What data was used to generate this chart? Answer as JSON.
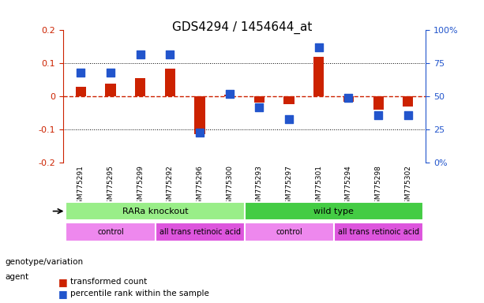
{
  "title": "GDS4294 / 1454644_at",
  "samples": [
    "GSM775291",
    "GSM775295",
    "GSM775299",
    "GSM775292",
    "GSM775296",
    "GSM775300",
    "GSM775293",
    "GSM775297",
    "GSM775301",
    "GSM775294",
    "GSM775298",
    "GSM775302"
  ],
  "transformed_count": [
    0.03,
    0.04,
    0.055,
    0.085,
    -0.113,
    0.005,
    -0.018,
    -0.022,
    0.12,
    -0.015,
    -0.04,
    -0.03
  ],
  "percentile_rank": [
    68,
    68,
    82,
    82,
    23,
    52,
    42,
    33,
    87,
    49,
    36,
    36
  ],
  "ylim_left": [
    -0.2,
    0.2
  ],
  "ylim_right": [
    0,
    100
  ],
  "yticks_left": [
    -0.2,
    -0.1,
    0,
    0.1,
    0.2
  ],
  "yticks_right": [
    0,
    25,
    50,
    75,
    100
  ],
  "ytick_labels_left": [
    "-0.2",
    "-0.1",
    "0",
    "0.1",
    "0.2"
  ],
  "ytick_labels_right": [
    "0%",
    "25",
    "50",
    "75",
    "100%"
  ],
  "bar_color": "#cc2200",
  "dot_color": "#2255cc",
  "zero_line_color": "#cc2200",
  "grid_color": "black",
  "bg_color": "white",
  "plot_bg": "#ffffff",
  "genotype_groups": [
    {
      "label": "RARa knockout",
      "start": 0,
      "end": 6,
      "color": "#99ee88"
    },
    {
      "label": "wild type",
      "start": 6,
      "end": 12,
      "color": "#44cc44"
    }
  ],
  "agent_groups": [
    {
      "label": "control",
      "start": 0,
      "end": 3,
      "color": "#ee88ee"
    },
    {
      "label": "all trans retinoic acid",
      "start": 3,
      "end": 6,
      "color": "#dd55dd"
    },
    {
      "label": "control",
      "start": 6,
      "end": 9,
      "color": "#ee88ee"
    },
    {
      "label": "all trans retinoic acid",
      "start": 9,
      "end": 12,
      "color": "#dd55dd"
    }
  ],
  "legend_items": [
    {
      "label": "transformed count",
      "color": "#cc2200"
    },
    {
      "label": "percentile rank within the sample",
      "color": "#2255cc"
    }
  ],
  "genotype_label": "genotype/variation",
  "agent_label": "agent"
}
